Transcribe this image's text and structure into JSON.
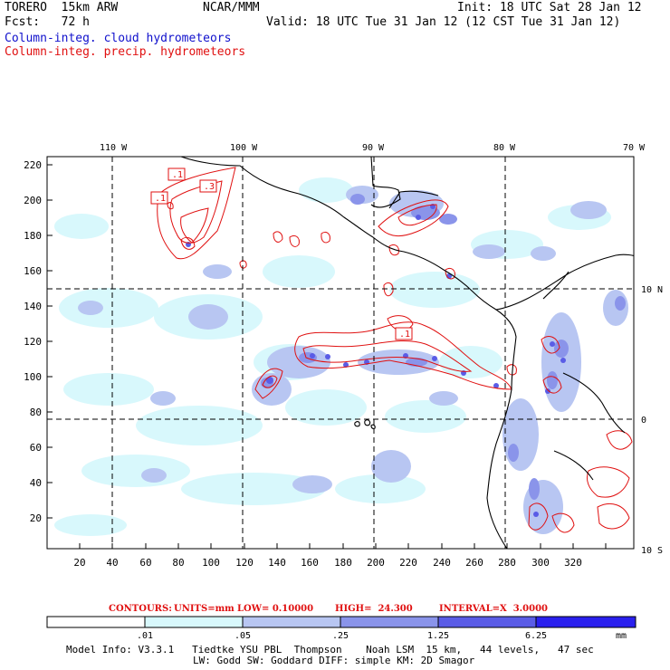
{
  "header": {
    "model_name": "TORERO  15km ARW",
    "org": "NCAR/MMM",
    "init": "Init: 18 UTC Sat 28 Jan 12",
    "fcst_label": "Fcst:   72 h",
    "valid": "Valid: 18 UTC Tue 31 Jan 12 (12 CST Tue 31 Jan 12)",
    "field_cloud": "Column-integ. cloud hydrometeors",
    "field_precip": "Column-integ. precip. hydrometeors"
  },
  "map": {
    "top_lon_labels": [
      "110 W",
      "100 W",
      "90 W",
      "80 W",
      "70 W"
    ],
    "right_lat_labels": [
      "10 N",
      "0",
      "10 S"
    ],
    "y_ticks": [
      "220",
      "200",
      "180",
      "160",
      "140",
      "120",
      "100",
      "80",
      "60",
      "40",
      "20"
    ],
    "x_ticks": [
      "20",
      "40",
      "60",
      "80",
      "100",
      "120",
      "140",
      "160",
      "180",
      "200",
      "220",
      "240",
      "260",
      "280",
      "300",
      "320"
    ],
    "contour_labels": [
      ".1",
      ".1",
      ".3",
      ".1"
    ]
  },
  "contours_info": {
    "label": "CONTOURS:",
    "units": "UNITS=mm",
    "low": "LOW= 0.10000",
    "high": "HIGH=  24.300",
    "interval": "INTERVAL=X  3.0000"
  },
  "colorbar": {
    "labels": [
      ".01",
      ".05",
      ".25",
      "1.25",
      "6.25"
    ],
    "units": "mm",
    "colors": [
      "#ffffff",
      "#d8f8fc",
      "#b8c6f2",
      "#8a94ea",
      "#5a5ce6",
      "#2a20ee"
    ]
  },
  "footer": {
    "line1": "Model Info: V3.3.1   Tiedtke YSU PBL  Thompson    Noah LSM  15 km,   44 levels,   47 sec",
    "line2": "LW: Godd SW: Goddard DIFF: simple KM: 2D Smagor"
  }
}
